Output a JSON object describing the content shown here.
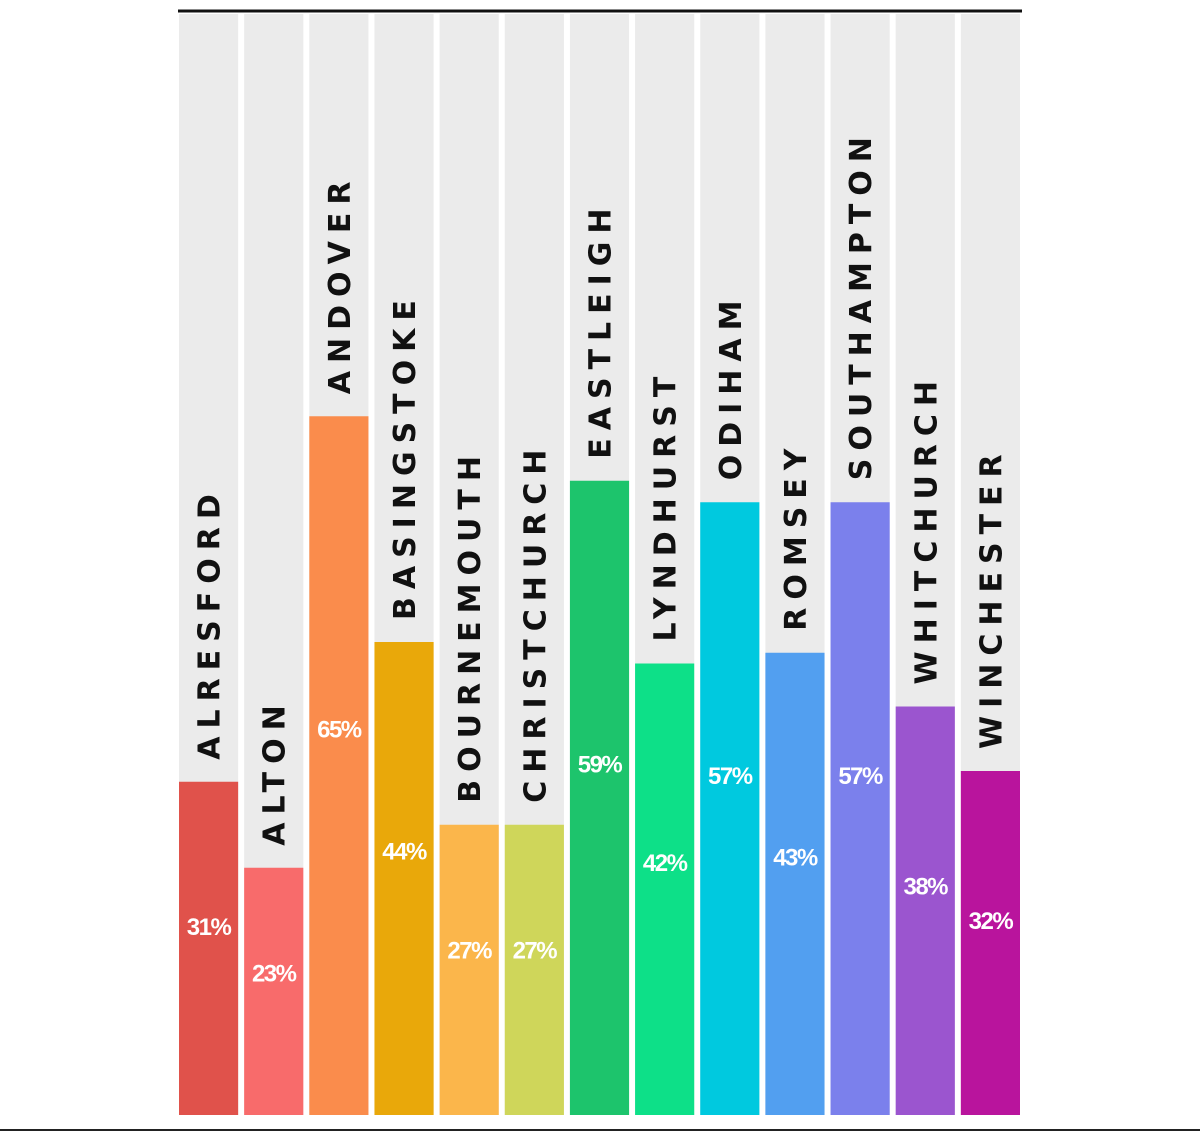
{
  "chart_data": {
    "type": "bar",
    "categories": [
      "ALRESFORD",
      "ALTON",
      "ANDOVER",
      "BASINGSTOKE",
      "BOURNEMOUTH",
      "CHRISTCHURCH",
      "EASTLEIGH",
      "LYNDHURST",
      "ODIHAM",
      "ROMSEY",
      "SOUTHAMPTON",
      "WHITCHURCH",
      "WINCHESTER"
    ],
    "values": [
      31,
      23,
      65,
      44,
      27,
      27,
      59,
      42,
      57,
      43,
      57,
      38,
      32
    ],
    "value_labels": [
      "31%",
      "23%",
      "65%",
      "44%",
      "27%",
      "27%",
      "59%",
      "42%",
      "57%",
      "43%",
      "57%",
      "38%",
      "32%"
    ],
    "colors": [
      "#e0524b",
      "#f86b6b",
      "#fa8c4c",
      "#e9a80a",
      "#fbb64b",
      "#cfd65a",
      "#1dc46c",
      "#0de088",
      "#00c9df",
      "#529ff0",
      "#7b80ec",
      "#9b55cf",
      "#b9149d"
    ],
    "track_color": "#ebebeb",
    "ylim": [
      0,
      100
    ],
    "grid": false,
    "legend": "none"
  }
}
